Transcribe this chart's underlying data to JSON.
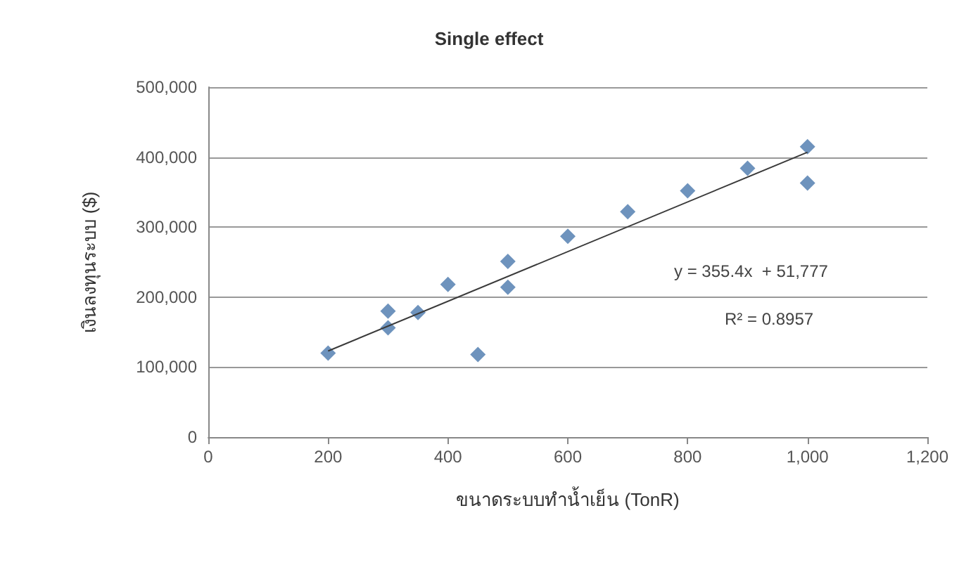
{
  "chart_data": {
    "type": "scatter",
    "title": "Single effect",
    "xlabel": "ขนาดระบบทำน้ำเย็น (TonR)",
    "ylabel": "เงินลงทุนระบบ ($)",
    "annotations": [
      "y = 355.4x  + 51,777",
      "R² = 0.8957"
    ],
    "series": [
      {
        "color": "#4a78ad",
        "x": [
          200,
          300,
          300,
          350,
          400,
          450,
          500,
          500,
          600,
          700,
          800,
          900,
          1000,
          1000
        ],
        "values": [
          120000,
          180000,
          156000,
          178000,
          218000,
          118000,
          251000,
          214000,
          287000,
          322000,
          352000,
          384000,
          415000,
          363000
        ]
      },
      {
        "type": "line",
        "color": "#3a3a3a",
        "x": [
          200,
          1000
        ],
        "values": [
          123000,
          407000
        ],
        "marker": "none"
      }
    ],
    "marker": "diamond",
    "grid": "y",
    "xlim": [
      0,
      1200
    ],
    "xticks": [
      0,
      200,
      400,
      600,
      800,
      {
        "value": 1000,
        "label": "1,000"
      },
      {
        "value": 1200,
        "label": "1,200"
      }
    ],
    "ylim": [
      0,
      500000
    ],
    "yticks": [
      0,
      {
        "value": 100000,
        "label": "100,000"
      },
      {
        "value": 200000,
        "label": "200,000"
      },
      {
        "value": 300000,
        "label": "300,000"
      },
      {
        "value": 400000,
        "label": "400,000"
      },
      {
        "value": 500000,
        "label": "500,000"
      }
    ]
  }
}
